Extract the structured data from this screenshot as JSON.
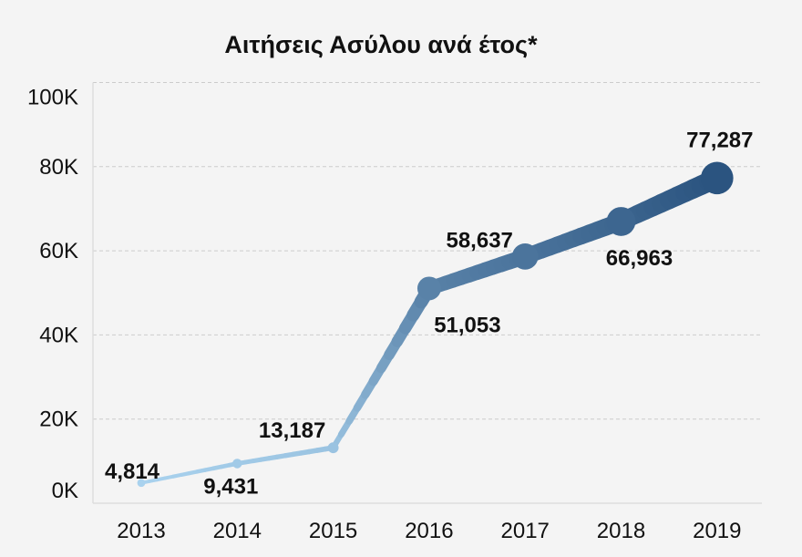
{
  "chart_data": {
    "type": "line",
    "title": "Αιτήσεις Ασύλου ανά έτος*",
    "categories": [
      "2013",
      "2014",
      "2015",
      "2016",
      "2017",
      "2018",
      "2019"
    ],
    "values": [
      4814,
      9431,
      13187,
      51053,
      58637,
      66963,
      77287
    ],
    "data_labels": [
      "4,814",
      "9,431",
      "13,187",
      "51,053",
      "58,637",
      "66,963",
      "77,287"
    ],
    "ylim": [
      0,
      100000
    ],
    "yticks": [
      0,
      20000,
      40000,
      60000,
      80000,
      100000
    ],
    "ytick_labels": [
      "0K",
      "20K",
      "40K",
      "60K",
      "80K",
      "100K"
    ],
    "xlabel": "",
    "ylabel": "",
    "grid": true,
    "legend": "none",
    "colors": {
      "low": "#a9d2ee",
      "high": "#2b5480",
      "background": "#f4f4f4",
      "grid": "#cccccc"
    }
  }
}
